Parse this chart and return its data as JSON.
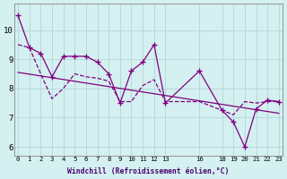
{
  "x_data": [
    0,
    1,
    2,
    3,
    4,
    5,
    6,
    7,
    8,
    9,
    10,
    11,
    12,
    13,
    16,
    18,
    19,
    20,
    21,
    22,
    23
  ],
  "y_main": [
    10.5,
    9.4,
    9.2,
    8.4,
    9.1,
    9.1,
    9.1,
    8.9,
    8.5,
    7.5,
    8.6,
    8.9,
    9.5,
    7.5,
    8.6,
    7.25,
    6.85,
    6.0,
    7.3,
    7.6,
    7.55
  ],
  "y_trend_start": 8.55,
  "y_trend_end": 7.15,
  "y_avg": [
    9.5,
    9.4,
    8.5,
    7.65,
    8.0,
    8.5,
    8.4,
    8.35,
    8.25,
    7.55,
    7.55,
    8.1,
    8.3,
    7.55,
    7.55,
    7.25,
    7.1,
    7.55,
    7.5,
    7.55,
    7.55
  ],
  "line_color": "#800080",
  "bg_color": "#d4f0f0",
  "grid_color": "#b8dada",
  "xlabel": "Windchill (Refroidissement éolien,°C)",
  "xlim": [
    -0.3,
    23.3
  ],
  "ylim": [
    5.7,
    10.9
  ],
  "yticks": [
    6,
    7,
    8,
    9,
    10
  ],
  "xtick_positions": [
    0,
    1,
    2,
    3,
    4,
    5,
    6,
    7,
    8,
    9,
    10,
    11,
    12,
    13,
    16,
    18,
    19,
    20,
    21,
    22,
    23
  ],
  "xtick_labels": [
    "0",
    "1",
    "2",
    "3",
    "4",
    "5",
    "6",
    "7",
    "8",
    "9",
    "10",
    "11",
    "12",
    "13",
    "16",
    "18",
    "19",
    "20",
    "21",
    "22",
    "23"
  ]
}
